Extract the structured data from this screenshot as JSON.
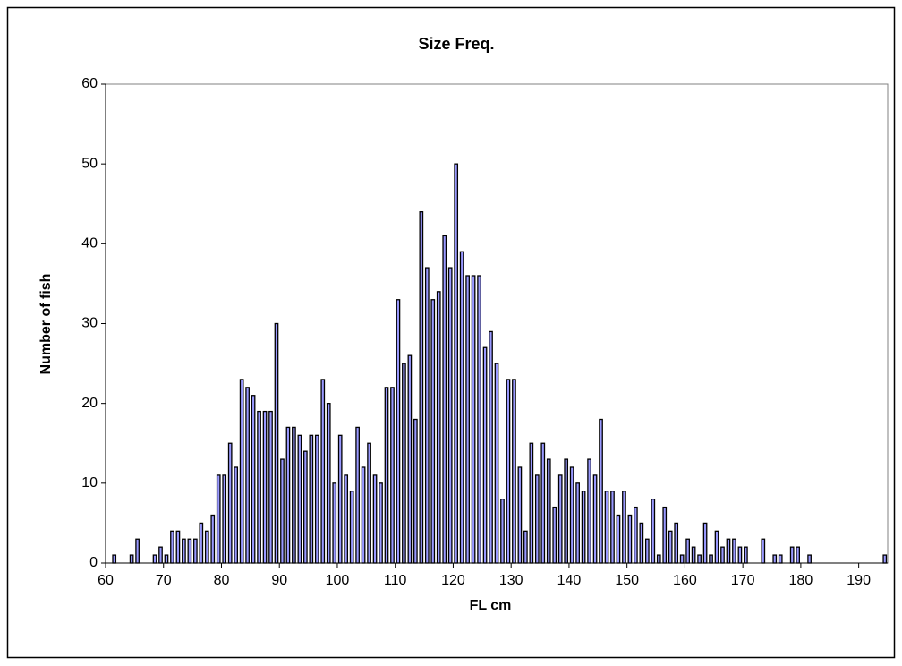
{
  "chart_data": {
    "type": "histogram",
    "title": "Size Freq.",
    "x_label": "FL cm",
    "y_label": "Number of fish",
    "color": "#9999ff",
    "bins": [
      60,
      61,
      62,
      63,
      64,
      65,
      66,
      67,
      68,
      69,
      70,
      71,
      72,
      73,
      74,
      75,
      76,
      77,
      78,
      79,
      80,
      81,
      82,
      83,
      84,
      85,
      86,
      87,
      88,
      89,
      90,
      91,
      92,
      93,
      94,
      95,
      96,
      97,
      98,
      99,
      100,
      101,
      102,
      103,
      104,
      105,
      106,
      107,
      108,
      109,
      110,
      111,
      112,
      113,
      114,
      115,
      116,
      117,
      118,
      119,
      120,
      121,
      122,
      123,
      124,
      125,
      126,
      127,
      128,
      129,
      130,
      131,
      132,
      133,
      134,
      135,
      136,
      137,
      138,
      139,
      140,
      141,
      142,
      143,
      144,
      145,
      146,
      147,
      148,
      149,
      150,
      151,
      152,
      153,
      154,
      155,
      156,
      157,
      158,
      159,
      160,
      161,
      162,
      163,
      164,
      165,
      166,
      167,
      168,
      169,
      170,
      171,
      172,
      173,
      174,
      175,
      176,
      177,
      178,
      179,
      180,
      181,
      182,
      183,
      184,
      185,
      186,
      187,
      188,
      189,
      190,
      191,
      192,
      193,
      194,
      195
    ],
    "values": [
      0,
      1,
      0,
      0,
      1,
      3,
      0,
      0,
      1,
      2,
      1,
      4,
      4,
      3,
      3,
      3,
      5,
      4,
      6,
      11,
      11,
      15,
      12,
      23,
      22,
      21,
      19,
      19,
      19,
      30,
      13,
      17,
      17,
      16,
      14,
      16,
      16,
      23,
      20,
      10,
      16,
      11,
      9,
      17,
      12,
      15,
      11,
      10,
      22,
      22,
      33,
      25,
      26,
      18,
      44,
      37,
      33,
      34,
      41,
      37,
      50,
      39,
      36,
      36,
      36,
      27,
      29,
      25,
      8,
      23,
      23,
      12,
      4,
      15,
      11,
      15,
      13,
      7,
      11,
      13,
      12,
      10,
      9,
      13,
      11,
      18,
      9,
      9,
      6,
      9,
      6,
      7,
      5,
      3,
      8,
      1,
      7,
      4,
      5,
      1,
      3,
      2,
      1,
      5,
      1,
      4,
      2,
      3,
      3,
      2,
      2,
      0,
      0,
      3,
      0,
      1,
      1,
      0,
      2,
      2,
      0,
      1,
      0,
      0,
      0,
      0,
      0,
      0,
      0,
      0,
      0,
      0,
      0,
      0,
      1
    ],
    "xlim": [
      60,
      195
    ],
    "ylim": [
      0,
      60
    ],
    "xticks": [
      60,
      70,
      80,
      90,
      100,
      110,
      120,
      130,
      140,
      150,
      160,
      170,
      180,
      190
    ],
    "yticks": [
      0,
      10,
      20,
      30,
      40,
      50,
      60
    ]
  }
}
